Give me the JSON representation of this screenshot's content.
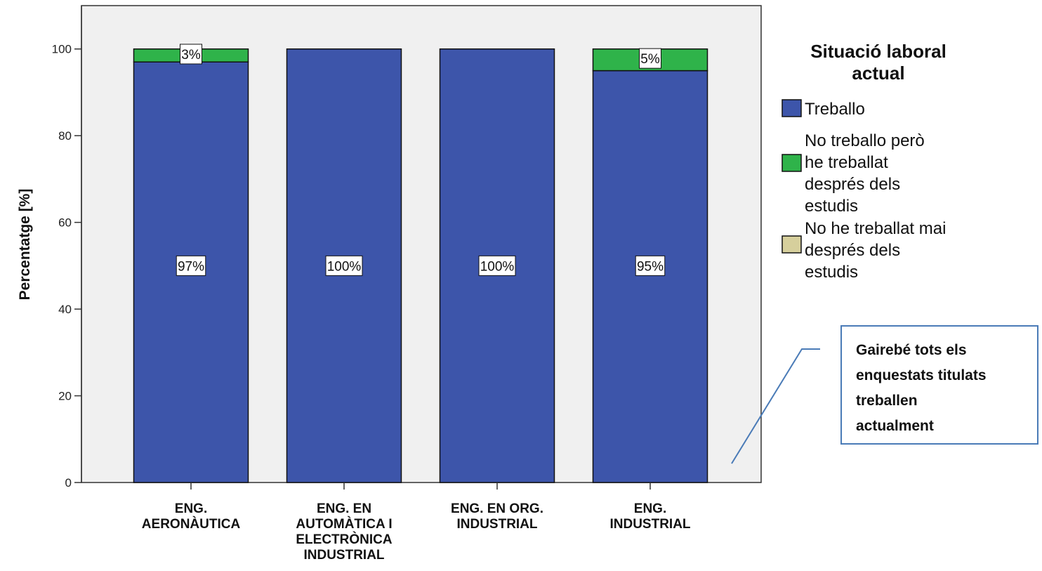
{
  "chart_data": {
    "type": "bar",
    "stacked": true,
    "categories": [
      [
        "ENG.",
        "AERONÀUTICA"
      ],
      [
        "ENG. EN",
        "AUTOMÀTICA I",
        "ELECTRÒNICA",
        "INDUSTRIAL"
      ],
      [
        "ENG. EN ORG.",
        "INDUSTRIAL"
      ],
      [
        "ENG.",
        "INDUSTRIAL"
      ]
    ],
    "series": [
      {
        "name": "Treballo",
        "values": [
          97,
          100,
          100,
          95
        ],
        "labels": [
          "97%",
          "100%",
          "100%",
          "95%"
        ],
        "color": "#3d55aa"
      },
      {
        "name": "No treballo però he treballat després dels estudis",
        "name_lines": [
          "No treballo però",
          "he treballat",
          "després dels",
          "estudis"
        ],
        "values": [
          3,
          0,
          0,
          5
        ],
        "labels": [
          "3%",
          "",
          "",
          "5%"
        ],
        "color": "#2fb34a"
      },
      {
        "name": "No he treballat mai després dels estudis",
        "name_lines": [
          "No he treballat mai",
          "després dels",
          "estudis"
        ],
        "values": [
          0,
          0,
          0,
          0
        ],
        "labels": [
          "",
          "",
          "",
          ""
        ],
        "color": "#d6cf9c"
      }
    ],
    "ylabel": "Percentatge [%]",
    "ylim": [
      0,
      110
    ],
    "yticks": [
      0,
      20,
      40,
      60,
      80,
      100
    ],
    "grid": false,
    "legend": {
      "title_lines": [
        "Situació laboral",
        "actual"
      ],
      "position": "right"
    },
    "annotation": {
      "text": "Gairebé tots els enquestats titulats treballen actualment",
      "lines": [
        "Gairebé tots els",
        "enquestats titulats",
        "treballen",
        "actualment"
      ]
    }
  }
}
